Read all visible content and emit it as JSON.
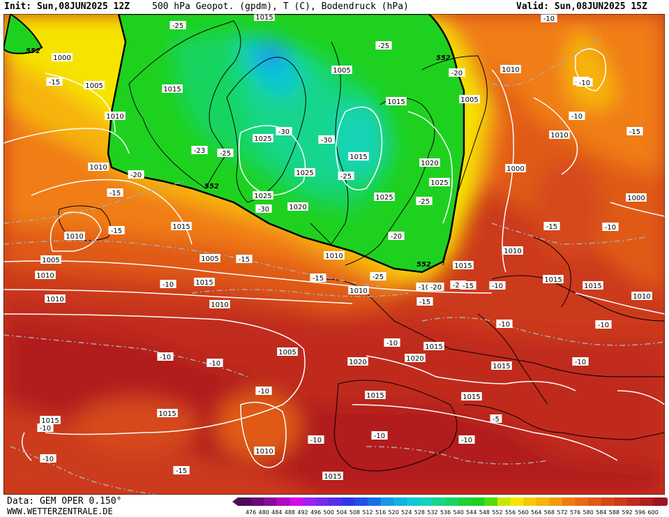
{
  "header": {
    "init": "Init: Sun,08JUN2025 12Z",
    "title": "500 hPa Geopot. (gpdm), T (C), Bodendruck (hPa)",
    "valid": "Valid: Sun,08JUN2025 15Z"
  },
  "footer": {
    "data_source": "Data: GEM OPER 0.150°",
    "site": "WWW.WETTERZENTRALE.DE"
  },
  "colors": {
    "dark_red": "#b21f1f",
    "red": "#cc3a1c",
    "orange_red": "#e05a18",
    "orange": "#f07d12",
    "yellow_orange": "#f6b40a",
    "yellow": "#f5e400",
    "green": "#1fd11f",
    "teal": "#15d68e",
    "cyan": "#11c6d6",
    "blue": "#1898e6"
  },
  "scale": {
    "values": [
      "476",
      "480",
      "484",
      "488",
      "492",
      "496",
      "500",
      "504",
      "508",
      "512",
      "516",
      "520",
      "524",
      "528",
      "532",
      "536",
      "540",
      "544",
      "548",
      "552",
      "556",
      "560",
      "564",
      "568",
      "572",
      "576",
      "580",
      "584",
      "588",
      "592",
      "596",
      "600"
    ],
    "colors": [
      "#4b0c52",
      "#6a0a74",
      "#8c0a9a",
      "#b00ac0",
      "#d60ae6",
      "#a020f0",
      "#7a28f0",
      "#5430e6",
      "#3038e6",
      "#2050e6",
      "#1870e6",
      "#1898e6",
      "#11b4e0",
      "#11c6d6",
      "#12d4b6",
      "#15d68e",
      "#18d460",
      "#1cd23a",
      "#1fd11f",
      "#50dc10",
      "#c8e600",
      "#f5e400",
      "#f6c80a",
      "#f6b40a",
      "#f39a10",
      "#f07d12",
      "#e86a16",
      "#e05a18",
      "#d6481a",
      "#cc3a1c",
      "#c02c1e",
      "#b21f1f",
      "#9c1422"
    ]
  },
  "contour_552_label": "552",
  "pressure_labels": [
    "1015",
    "1000",
    "1005",
    "1015",
    "1010",
    "1010",
    "1005",
    "1005",
    "1010",
    "1015",
    "1015",
    "1020",
    "1025",
    "1025",
    "1025",
    "1025",
    "1025",
    "1020",
    "1015",
    "1010",
    "1010",
    "1000",
    "1000",
    "1005",
    "1005",
    "1010",
    "1010",
    "1015",
    "1010",
    "1010",
    "1005",
    "1015",
    "1015",
    "1010",
    "1015",
    "1010",
    "1020",
    "1020",
    "1015",
    "1015",
    "1015",
    "1015",
    "1015",
    "1010",
    "1015",
    "1015",
    "1010"
  ],
  "temperature_labels": [
    "-25",
    "-25",
    "-20",
    "-15",
    "-15",
    "-15",
    "-20",
    "-15",
    "-15",
    "-10",
    "-30",
    "-30",
    "-25",
    "-23",
    "-25",
    "-30",
    "-20",
    "-25",
    "-25",
    "-25",
    "-10",
    "-15",
    "-15",
    "-10",
    "-10",
    "-10",
    "-10",
    "-10",
    "-15",
    "-10",
    "-10",
    "-10",
    "-10",
    "-10",
    "-5",
    "-10",
    "-10",
    "-10",
    "-15",
    "-10",
    "-15",
    "-10",
    "-15",
    "-20",
    "-10",
    "-10"
  ]
}
